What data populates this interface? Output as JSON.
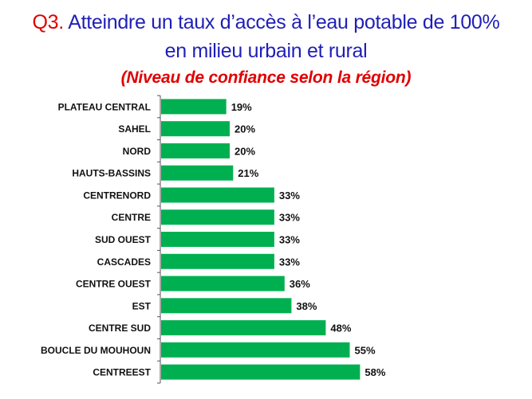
{
  "header": {
    "prefix": "Q3.",
    "line1": " Atteindre un taux d’accès à l’eau potable de 100%",
    "line2": "en milieu urbain et rural",
    "subtitle": "(Niveau de confiance selon la région)"
  },
  "colors": {
    "bar": "#00b050",
    "title": "#1f1fb8",
    "accent": "#e00000"
  },
  "chart_data": {
    "type": "bar",
    "orientation": "horizontal",
    "title": "Q3. Atteindre un taux d’accès à l’eau potable de 100% en milieu urbain et rural",
    "subtitle": "(Niveau de confiance selon la région)",
    "categories": [
      "PLATEAU CENTRAL",
      "SAHEL",
      "NORD",
      "HAUTS-BASSINS",
      "CENTRENORD",
      "CENTRE",
      "SUD OUEST",
      "CASCADES",
      "CENTRE OUEST",
      "EST",
      "CENTRE SUD",
      "BOUCLE DU MOUHOUN",
      "CENTREEST"
    ],
    "values": [
      19,
      20,
      20,
      21,
      33,
      33,
      33,
      33,
      36,
      38,
      48,
      55,
      58
    ],
    "value_labels": [
      "19%",
      "20%",
      "20%",
      "21%",
      "33%",
      "33%",
      "33%",
      "33%",
      "36%",
      "38%",
      "48%",
      "55%",
      "58%"
    ],
    "unit": "%",
    "xlim": [
      0,
      100
    ],
    "grid": false,
    "legend": "none"
  }
}
